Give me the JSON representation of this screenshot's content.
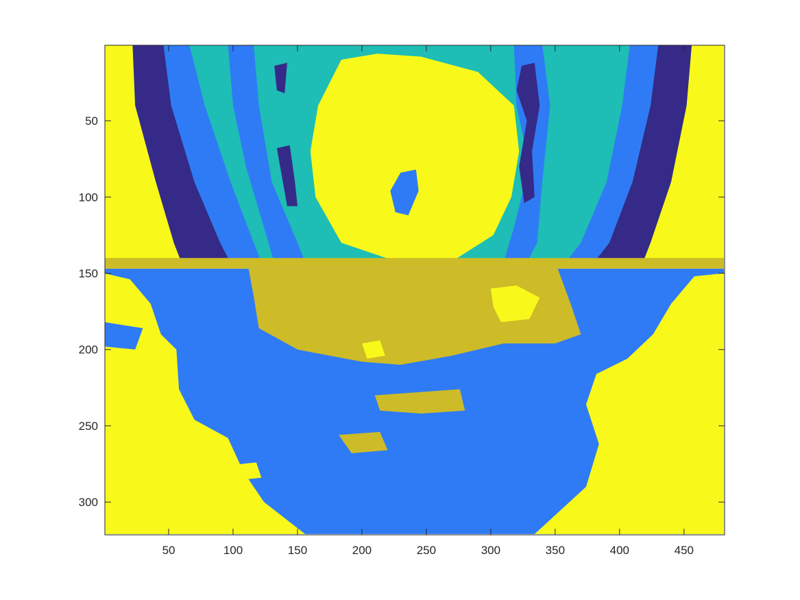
{
  "chart_data": {
    "type": "heatmap",
    "title": "",
    "xlabel": "",
    "ylabel": "",
    "xlim": [
      0.5,
      481.5
    ],
    "ylim": [
      0.5,
      321.5
    ],
    "y_reversed": true,
    "xticks": [
      50,
      100,
      150,
      200,
      250,
      300,
      350,
      400,
      450
    ],
    "yticks": [
      50,
      100,
      150,
      200,
      250,
      300
    ],
    "grid": false,
    "legend": "none",
    "colormap": [
      "#352a87",
      "#1ebdb5",
      "#2f7bf5",
      "#cdbb28",
      "#f8f91a"
    ],
    "regions": [
      {
        "color": "#f8f91a",
        "poly": [
          [
            0,
            0
          ],
          [
            481,
            0
          ],
          [
            481,
            146
          ],
          [
            0,
            146
          ]
        ]
      },
      {
        "color": "#1ebdb5",
        "poly": [
          [
            22,
            0
          ],
          [
            456,
            0
          ],
          [
            452,
            40
          ],
          [
            440,
            90
          ],
          [
            424,
            130
          ],
          [
            418,
            143
          ],
          [
            60,
            143
          ],
          [
            54,
            130
          ],
          [
            44,
            90
          ],
          [
            24,
            40
          ]
        ]
      },
      {
        "color": "#352a87",
        "poly": [
          [
            22,
            0
          ],
          [
            46,
            0
          ],
          [
            52,
            40
          ],
          [
            70,
            90
          ],
          [
            90,
            130
          ],
          [
            98,
            143
          ],
          [
            60,
            143
          ],
          [
            54,
            130
          ],
          [
            40,
            90
          ],
          [
            24,
            40
          ]
        ]
      },
      {
        "color": "#352a87",
        "poly": [
          [
            430,
            0
          ],
          [
            456,
            0
          ],
          [
            452,
            40
          ],
          [
            440,
            90
          ],
          [
            424,
            130
          ],
          [
            418,
            143
          ],
          [
            380,
            143
          ],
          [
            392,
            130
          ],
          [
            410,
            90
          ],
          [
            424,
            40
          ]
        ]
      },
      {
        "color": "#2f7bf5",
        "poly": [
          [
            46,
            0
          ],
          [
            66,
            0
          ],
          [
            78,
            40
          ],
          [
            98,
            90
          ],
          [
            116,
            130
          ],
          [
            122,
            143
          ],
          [
            98,
            143
          ],
          [
            90,
            130
          ],
          [
            70,
            90
          ],
          [
            52,
            40
          ]
        ]
      },
      {
        "color": "#2f7bf5",
        "poly": [
          [
            408,
            0
          ],
          [
            430,
            0
          ],
          [
            424,
            40
          ],
          [
            410,
            90
          ],
          [
            392,
            130
          ],
          [
            380,
            143
          ],
          [
            358,
            143
          ],
          [
            370,
            130
          ],
          [
            390,
            90
          ],
          [
            402,
            40
          ]
        ]
      },
      {
        "color": "#2f7bf5",
        "poly": [
          [
            96,
            0
          ],
          [
            116,
            0
          ],
          [
            120,
            40
          ],
          [
            130,
            90
          ],
          [
            150,
            130
          ],
          [
            156,
            143
          ],
          [
            132,
            143
          ],
          [
            124,
            120
          ],
          [
            110,
            80
          ],
          [
            100,
            40
          ]
        ]
      },
      {
        "color": "#2f7bf5",
        "poly": [
          [
            318,
            0
          ],
          [
            340,
            0
          ],
          [
            346,
            40
          ],
          [
            340,
            90
          ],
          [
            336,
            130
          ],
          [
            328,
            143
          ],
          [
            310,
            143
          ],
          [
            318,
            120
          ],
          [
            330,
            80
          ],
          [
            320,
            40
          ]
        ]
      },
      {
        "color": "#352a87",
        "poly": [
          [
            132,
            14
          ],
          [
            142,
            12
          ],
          [
            140,
            32
          ],
          [
            134,
            30
          ]
        ]
      },
      {
        "color": "#352a87",
        "poly": [
          [
            134,
            68
          ],
          [
            144,
            66
          ],
          [
            148,
            90
          ],
          [
            150,
            106
          ],
          [
            142,
            106
          ]
        ]
      },
      {
        "color": "#352a87",
        "poly": [
          [
            324,
            14
          ],
          [
            334,
            12
          ],
          [
            338,
            40
          ],
          [
            332,
            70
          ],
          [
            334,
            100
          ],
          [
            326,
            104
          ],
          [
            322,
            80
          ],
          [
            328,
            50
          ],
          [
            320,
            30
          ]
        ]
      },
      {
        "color": "#f8f91a",
        "poly": [
          [
            184,
            10
          ],
          [
            212,
            6
          ],
          [
            246,
            8
          ],
          [
            290,
            18
          ],
          [
            318,
            40
          ],
          [
            322,
            70
          ],
          [
            316,
            100
          ],
          [
            302,
            125
          ],
          [
            274,
            140
          ],
          [
            226,
            142
          ],
          [
            184,
            130
          ],
          [
            164,
            100
          ],
          [
            160,
            70
          ],
          [
            166,
            40
          ]
        ]
      },
      {
        "color": "#2f7bf5",
        "poly": [
          [
            230,
            84
          ],
          [
            242,
            82
          ],
          [
            244,
            96
          ],
          [
            236,
            112
          ],
          [
            226,
            110
          ],
          [
            222,
            96
          ]
        ]
      },
      {
        "color": "#cdbb28",
        "poly": [
          [
            0,
            140
          ],
          [
            481,
            140
          ],
          [
            481,
            147
          ],
          [
            0,
            147
          ]
        ]
      },
      {
        "color": "#2f7bf5",
        "poly": [
          [
            0,
            147
          ],
          [
            481,
            147
          ],
          [
            481,
            321
          ],
          [
            0,
            321
          ]
        ]
      },
      {
        "color": "#cdbb28",
        "poly": [
          [
            112,
            147
          ],
          [
            352,
            147
          ],
          [
            362,
            170
          ],
          [
            370,
            190
          ],
          [
            350,
            196
          ],
          [
            310,
            196
          ],
          [
            270,
            204
          ],
          [
            230,
            210
          ],
          [
            200,
            208
          ],
          [
            150,
            200
          ],
          [
            120,
            186
          ],
          [
            116,
            165
          ]
        ]
      },
      {
        "color": "#cdbb28",
        "poly": [
          [
            210,
            230
          ],
          [
            276,
            226
          ],
          [
            280,
            240
          ],
          [
            246,
            242
          ],
          [
            214,
            240
          ]
        ]
      },
      {
        "color": "#cdbb28",
        "poly": [
          [
            182,
            256
          ],
          [
            214,
            254
          ],
          [
            220,
            266
          ],
          [
            192,
            268
          ]
        ]
      },
      {
        "color": "#f8f91a",
        "poly": [
          [
            0,
            150
          ],
          [
            20,
            154
          ],
          [
            36,
            170
          ],
          [
            44,
            190
          ],
          [
            56,
            200
          ],
          [
            58,
            226
          ],
          [
            70,
            246
          ],
          [
            96,
            258
          ],
          [
            108,
            280
          ],
          [
            124,
            300
          ],
          [
            156,
            321
          ],
          [
            0,
            321
          ]
        ]
      },
      {
        "color": "#f8f91a",
        "poly": [
          [
            481,
            150
          ],
          [
            458,
            152
          ],
          [
            440,
            170
          ],
          [
            426,
            190
          ],
          [
            406,
            206
          ],
          [
            382,
            216
          ],
          [
            374,
            236
          ],
          [
            384,
            262
          ],
          [
            374,
            290
          ],
          [
            334,
            321
          ],
          [
            481,
            321
          ]
        ]
      },
      {
        "color": "#f8f91a",
        "poly": [
          [
            300,
            160
          ],
          [
            320,
            158
          ],
          [
            338,
            166
          ],
          [
            330,
            180
          ],
          [
            308,
            182
          ],
          [
            302,
            172
          ]
        ]
      },
      {
        "color": "#f8f91a",
        "poly": [
          [
            200,
            196
          ],
          [
            214,
            194
          ],
          [
            218,
            204
          ],
          [
            204,
            206
          ]
        ]
      },
      {
        "color": "#f8f91a",
        "poly": [
          [
            96,
            276
          ],
          [
            118,
            274
          ],
          [
            122,
            284
          ],
          [
            100,
            286
          ]
        ]
      },
      {
        "color": "#2f7bf5",
        "poly": [
          [
            0,
            182
          ],
          [
            30,
            186
          ],
          [
            24,
            200
          ],
          [
            0,
            198
          ]
        ]
      }
    ]
  }
}
